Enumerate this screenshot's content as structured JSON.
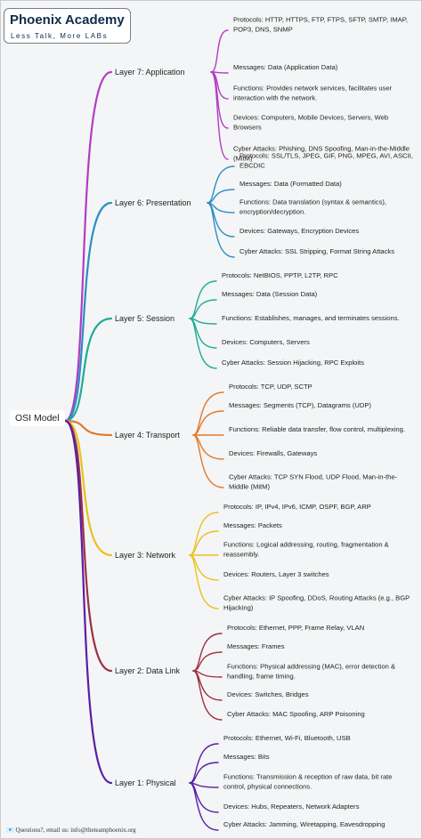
{
  "header": {
    "title": "Phoenix Academy",
    "tagline": "Less Talk, More LABs"
  },
  "root": "OSI Model",
  "layers": [
    {
      "label": "Layer 7: Application",
      "items": [
        "Protocols: HTTP, HTTPS, FTP, FTPS, SFTP, SMTP, IMAP, POP3, DNS, SNMP",
        "Messages: Data (Application Data)",
        "Functions: Provides network services, facilitates user interaction with the network.",
        "Devices: Computers, Mobile Devices, Servers, Web Browsers",
        "Cyber Attacks: Phishing, DNS Spoofing, Man-in-the-Middle (MitM)"
      ]
    },
    {
      "label": "Layer 6: Presentation",
      "items": [
        "Protocols: SSL/TLS, JPEG, GIF, PNG, MPEG, AVI, ASCII, EBCDIC",
        "Messages: Data (Formatted Data)",
        "Functions: Data translation (syntax & semantics), encryption/decryption.",
        "Devices: Gateways, Encryption Devices",
        "Cyber Attacks: SSL Stripping, Format String Attacks"
      ]
    },
    {
      "label": "Layer 5: Session",
      "items": [
        "Protocols: NetBIOS, PPTP, L2TP, RPC",
        "Messages: Data (Session Data)",
        "Functions: Establishes, manages, and terminates sessions.",
        "Devices: Computers, Servers",
        "Cyber Attacks: Session Hijacking, RPC Exploits"
      ]
    },
    {
      "label": "Layer 4: Transport",
      "items": [
        "Protocols: TCP, UDP, SCTP",
        "Messages: Segments (TCP), Datagrams (UDP)",
        "Functions: Reliable data transfer, flow control, multiplexing.",
        "Devices: Firewalls, Gateways",
        "Cyber Attacks: TCP SYN Flood, UDP Flood, Man-in-the-Middle (MitM)"
      ]
    },
    {
      "label": "Layer 3: Network",
      "items": [
        "Protocols: IP, IPv4, IPv6, ICMP, OSPF, BGP, ARP",
        "Messages: Packets",
        "Functions: Logical addressing, routing, fragmentation & reassembly.",
        "Devices: Routers, Layer 3 switches",
        "Cyber Attacks: IP Spoofing, DDoS, Routing Attacks (e.g., BGP Hijacking)"
      ]
    },
    {
      "label": "Layer 2: Data Link",
      "items": [
        "Protocols: Ethernet, PPP, Frame Relay, VLAN",
        "Messages: Frames",
        "Functions: Physical addressing (MAC), error detection & handling, frame timing.",
        "Devices: Switches, Bridges",
        "Cyber Attacks: MAC Spoofing, ARP Poisoning"
      ]
    },
    {
      "label": "Layer 1: Physical",
      "items": [
        "Protocols: Ethernet, Wi-Fi, Bluetooth, USB",
        "Messages: Bits",
        "Functions: Transmission & reception of raw data, bit rate control, physical connections.",
        "Devices: Hubs, Repeaters, Network Adapters",
        "Cyber Attacks: Jamming, Wiretapping, Eavesdropping"
      ]
    }
  ],
  "footer": "Questions?, email us: info@theteamphoenix.org"
}
